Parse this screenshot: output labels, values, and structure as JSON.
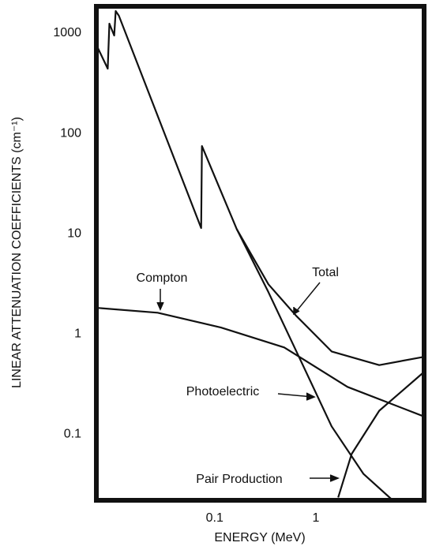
{
  "chart_data": {
    "type": "line",
    "x_label": "ENERGY (MeV)",
    "y_label": "LINEAR ATTENUATION COEFFICIENTS (cm⁻¹)",
    "xlog": true,
    "ylog": true,
    "xlim": [
      0.0068,
      11.7
    ],
    "ylim": [
      0.022,
      1850
    ],
    "xticks": [
      0.1,
      1
    ],
    "yticks": [
      1000,
      100,
      10,
      1,
      0.1
    ],
    "series": [
      {
        "name": "Total",
        "color": "#111111",
        "x": [
          0.00698,
          0.00881,
          0.00914,
          0.0102,
          0.01055,
          0.01135,
          0.0737,
          0.075,
          0.1655,
          0.34,
          0.638,
          1.43,
          4.22,
          11.4
        ],
        "values": [
          721,
          442,
          1243,
          947,
          1660,
          1490,
          11.4,
          74.8,
          11.1,
          3.13,
          1.52,
          0.67,
          0.49,
          0.59
        ]
      },
      {
        "name": "Compton",
        "color": "#111111",
        "x": [
          0.00698,
          0.0274,
          0.1155,
          0.487,
          2.05,
          11.4
        ],
        "values": [
          1.82,
          1.63,
          1.16,
          0.735,
          0.297,
          0.152
        ]
      },
      {
        "name": "Photoelectric",
        "color": "#111111",
        "x": [
          0.1655,
          0.34,
          0.698,
          1.43,
          2.94,
          5.73
        ],
        "values": [
          11.1,
          2.61,
          0.56,
          0.12,
          0.0404,
          0.022
        ]
      },
      {
        "name": "Pair Production",
        "color": "#111111",
        "x": [
          1.66,
          2.25,
          4.22,
          11.4
        ],
        "values": [
          0.0235,
          0.0636,
          0.172,
          0.41
        ]
      }
    ]
  }
}
